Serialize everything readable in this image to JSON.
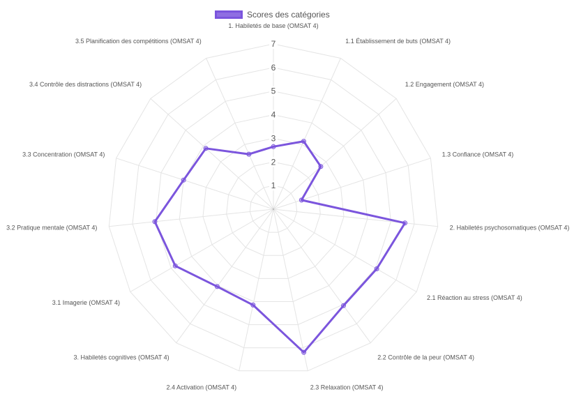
{
  "legend": {
    "label": "Scores des catégories",
    "color": "#7b55dd"
  },
  "chart_data": {
    "type": "radar",
    "categories": [
      "1. Habiletés de base (OMSAT 4)",
      "1.1 Établissement de buts (OMSAT 4)",
      "1.2 Engagement (OMSAT 4)",
      "1.3 Confiance (OMSAT 4)",
      "2. Habiletés psychosomatiques (OMSAT 4)",
      "2.1 Réaction au stress (OMSAT 4)",
      "2.2 Contrôle de la peur (OMSAT 4)",
      "2.3 Relaxation (OMSAT 4)",
      "2.4 Activation (OMSAT 4)",
      "3. Habiletés cognitives (OMSAT 4)",
      "3.1 Imagerie (OMSAT 4)",
      "3.2 Pratique mentale (OMSAT 4)",
      "3.3 Concentration (OMSAT 4)",
      "3.4 Contrôle des distractions (OMSAT 4)",
      "3.5 Planification des compétitions (OMSAT 4)"
    ],
    "series": [
      {
        "name": "Scores des catégories",
        "values": [
          2.65,
          3.15,
          2.7,
          1.25,
          5.6,
          5.05,
          5.05,
          6.2,
          4.15,
          4.05,
          4.8,
          5.05,
          4.0,
          3.85,
          2.55
        ]
      }
    ],
    "rlim": [
      0,
      7
    ],
    "ticks": [
      "1",
      "2",
      "3",
      "4",
      "5",
      "6",
      "7"
    ],
    "grid": true
  }
}
